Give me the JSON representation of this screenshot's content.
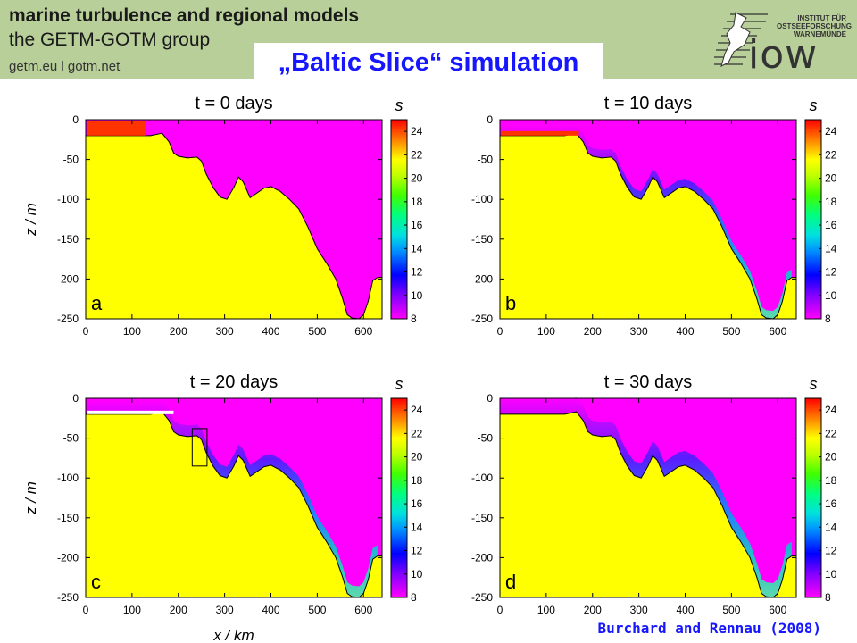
{
  "header": {
    "line1": "marine turbulence and regional models",
    "line2": "the GETM-GOTM group",
    "links": "getm.eu  l  gotm.net"
  },
  "slide_title": "„Baltic Slice“ simulation",
  "logo": {
    "lines": [
      "INSTITUT FÜR",
      "OSTSEEFORSCHUNG",
      "WARNEMÜNDE"
    ],
    "wordmark": "iow"
  },
  "credit": "Burchard and Rennau (2008)",
  "colors": {
    "header_bg": "#b9cf99",
    "title_blue": "#1616ff",
    "topography": "#ffff00",
    "low_salinity": "#ff00ff",
    "high_salinity": "#ff3300"
  },
  "axes": {
    "xlabel": "x / km",
    "ylabel": "z / m",
    "colorbar_label": "s",
    "x_ticks": [
      0,
      100,
      200,
      300,
      400,
      500,
      600
    ],
    "y_ticks": [
      0,
      -50,
      -100,
      -150,
      -200,
      -250
    ],
    "colorbar_ticks": [
      24,
      22,
      20,
      18,
      16,
      14,
      12,
      10,
      8
    ]
  },
  "chart_data": [
    {
      "type": "heatmap",
      "title": "t = 0 days",
      "panel": "a",
      "xlim": [
        0,
        640
      ],
      "ylim": [
        -250,
        0
      ],
      "colorbar_range": [
        8,
        25
      ]
    },
    {
      "type": "heatmap",
      "title": "t = 10 days",
      "panel": "b",
      "xlim": [
        0,
        640
      ],
      "ylim": [
        -250,
        0
      ],
      "colorbar_range": [
        8,
        25
      ]
    },
    {
      "type": "heatmap",
      "title": "t = 20 days",
      "panel": "c",
      "xlim": [
        0,
        640
      ],
      "ylim": [
        -250,
        0
      ],
      "colorbar_range": [
        8,
        25
      ]
    },
    {
      "type": "heatmap",
      "title": "t = 30 days",
      "panel": "d",
      "xlim": [
        0,
        640
      ],
      "ylim": [
        -250,
        0
      ],
      "colorbar_range": [
        8,
        25
      ]
    }
  ],
  "bathymetry": {
    "x": [
      0,
      140,
      165,
      180,
      190,
      200,
      220,
      240,
      250,
      260,
      275,
      290,
      305,
      320,
      330,
      340,
      355,
      370,
      385,
      400,
      420,
      440,
      460,
      480,
      500,
      520,
      540,
      555,
      565,
      575,
      590,
      600,
      610,
      620,
      630
    ],
    "z": [
      -20,
      -20,
      -17,
      -28,
      -42,
      -46,
      -48,
      -47,
      -52,
      -68,
      -85,
      -97,
      -100,
      -85,
      -72,
      -78,
      -98,
      -92,
      -86,
      -84,
      -90,
      -100,
      -112,
      -135,
      -162,
      -180,
      -200,
      -225,
      -245,
      -249,
      -250,
      -245,
      -228,
      -202,
      -198
    ]
  },
  "inflow_pool": {
    "x_end": 130,
    "z_bottom": -20
  }
}
